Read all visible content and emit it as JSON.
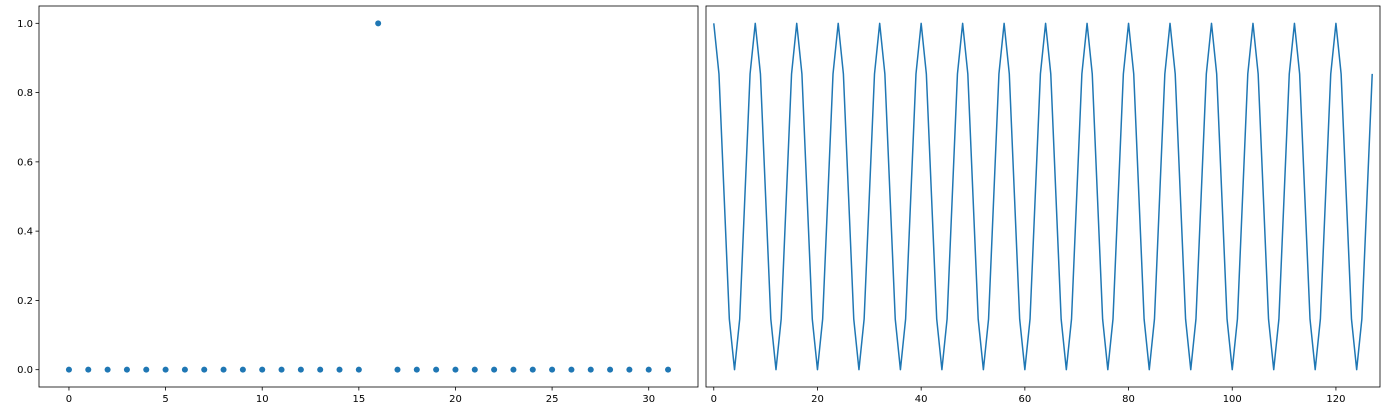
{
  "chart_data": [
    {
      "type": "scatter",
      "title": "",
      "xlabel": "",
      "ylabel": "",
      "xlim": [
        -1.55,
        32.55
      ],
      "ylim": [
        -0.05,
        1.05
      ],
      "xticks": [
        0,
        5,
        10,
        15,
        20,
        25,
        30
      ],
      "yticks": [
        0.0,
        0.2,
        0.4,
        0.6,
        0.8,
        1.0
      ],
      "xtick_labels": [
        "0",
        "5",
        "10",
        "15",
        "20",
        "25",
        "30"
      ],
      "ytick_labels": [
        "0.0",
        "0.2",
        "0.4",
        "0.6",
        "0.8",
        "1.0"
      ],
      "grid": false,
      "series": [
        {
          "x": [
            0,
            1,
            2,
            3,
            4,
            5,
            6,
            7,
            8,
            9,
            10,
            11,
            12,
            13,
            14,
            15,
            16,
            17,
            18,
            19,
            20,
            21,
            22,
            23,
            24,
            25,
            26,
            27,
            28,
            29,
            30,
            31
          ],
          "y": [
            0,
            0,
            0,
            0,
            0,
            0,
            0,
            0,
            0,
            0,
            0,
            0,
            0,
            0,
            0,
            0,
            1,
            0,
            0,
            0,
            0,
            0,
            0,
            0,
            0,
            0,
            0,
            0,
            0,
            0,
            0,
            0
          ],
          "color": "#1f77b4"
        }
      ]
    },
    {
      "type": "line",
      "title": "",
      "xlabel": "",
      "ylabel": "",
      "xlim": [
        -1.5,
        128.5
      ],
      "ylim": [
        -0.05,
        1.05
      ],
      "xticks": [
        0,
        20,
        40,
        60,
        80,
        100,
        120
      ],
      "xtick_labels": [
        "0",
        "20",
        "40",
        "60",
        "80",
        "100",
        "120"
      ],
      "yticks": [],
      "grid": false,
      "period": 8,
      "cycle_values": [
        1.0,
        0.854,
        0.5,
        0.146,
        0.0,
        0.146,
        0.5,
        0.854
      ],
      "x_start": 0,
      "x_end": 127,
      "series": [
        {
          "color": "#1f77b4"
        }
      ]
    }
  ]
}
